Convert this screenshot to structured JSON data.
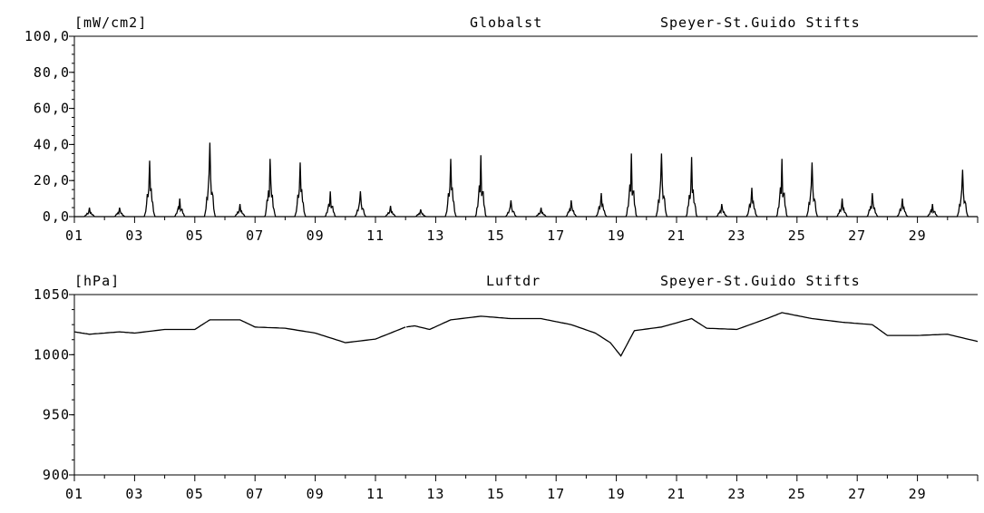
{
  "chart_data": [
    {
      "type": "line",
      "unit": "[mW/cm2]",
      "title": "Globalst",
      "station": "Speyer-St.Guido Stifts",
      "ylim": [
        0,
        100
      ],
      "y_ticks": [
        "0,0",
        "20,0",
        "40,0",
        "60,0",
        "80,0",
        "100,0"
      ],
      "x_ticks": [
        "01",
        "03",
        "05",
        "07",
        "09",
        "11",
        "13",
        "15",
        "17",
        "19",
        "21",
        "23",
        "25",
        "27",
        "29"
      ],
      "xlim": [
        1,
        31
      ],
      "series": [
        {
          "daily_peaks": [
            5,
            5,
            31,
            10,
            41,
            7,
            32,
            30,
            14,
            14,
            6,
            4,
            32,
            34,
            9,
            5,
            9,
            13,
            35,
            35,
            33,
            7,
            16,
            32,
            30,
            10,
            13,
            10,
            7,
            26
          ]
        }
      ]
    },
    {
      "type": "line",
      "unit": "[hPa]",
      "title": "Luftdr",
      "station": "Speyer-St.Guido Stifts",
      "ylim": [
        900,
        1050
      ],
      "y_ticks": [
        "900",
        "950",
        "1000",
        "1050"
      ],
      "x_ticks": [
        "01",
        "03",
        "05",
        "07",
        "09",
        "11",
        "13",
        "15",
        "17",
        "19",
        "21",
        "23",
        "25",
        "27",
        "29"
      ],
      "xlim": [
        1,
        31
      ],
      "series": [
        {
          "x": [
            1.0,
            1.5,
            2.5,
            3.0,
            4.0,
            5.0,
            5.5,
            6.5,
            7.0,
            8.0,
            9.0,
            10.0,
            11.0,
            12.0,
            12.3,
            12.8,
            13.5,
            14.5,
            15.5,
            16.5,
            17.5,
            18.3,
            18.8,
            19.15,
            19.6,
            20.5,
            21.5,
            22.0,
            23.0,
            24.0,
            24.5,
            25.5,
            26.5,
            27.5,
            28.0,
            29.0,
            30.0,
            31.0
          ],
          "y": [
            1019,
            1017,
            1019,
            1018,
            1021,
            1021,
            1029,
            1029,
            1023,
            1022,
            1018,
            1010,
            1013,
            1023,
            1024,
            1021,
            1029,
            1032,
            1030,
            1030,
            1025,
            1018,
            1010,
            999,
            1020,
            1023,
            1030,
            1022,
            1021,
            1030,
            1035,
            1030,
            1027,
            1025,
            1016,
            1016,
            1017,
            1011
          ]
        }
      ]
    }
  ]
}
